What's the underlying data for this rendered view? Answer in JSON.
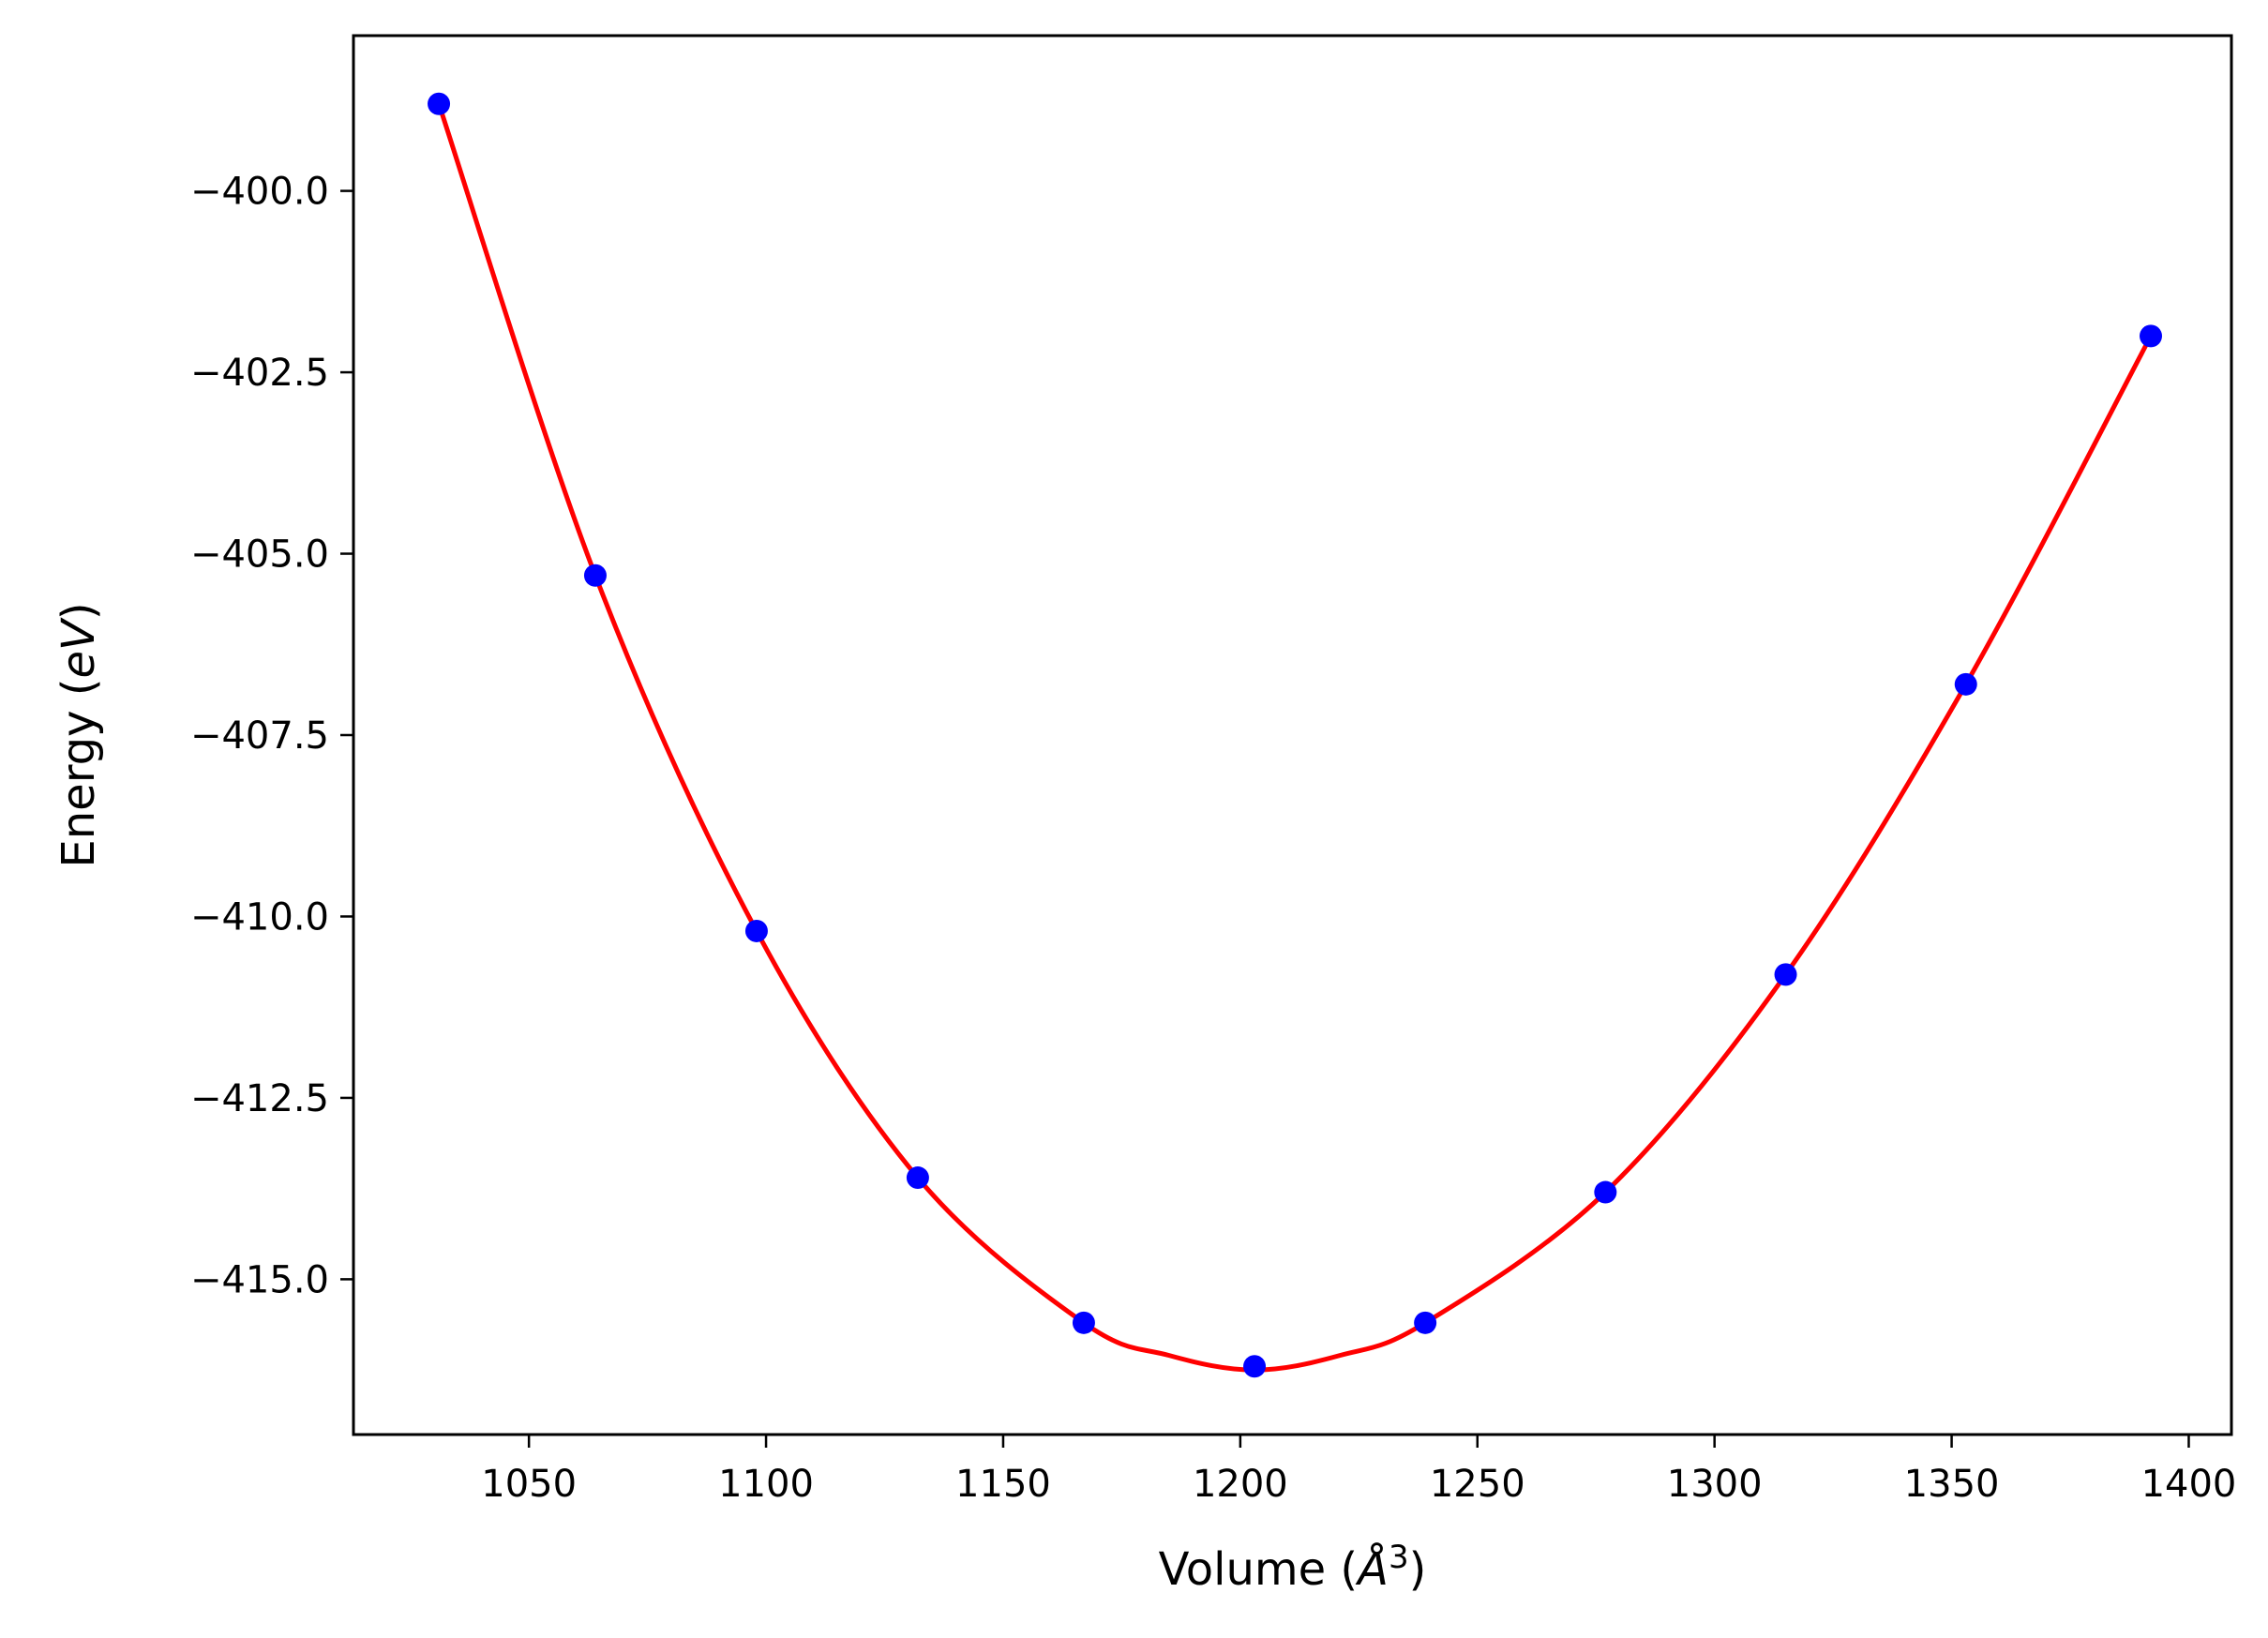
{
  "chart_data": {
    "type": "scatter",
    "title": "",
    "xlabel": {
      "prefix": "Volume (",
      "unit": "Å",
      "superscript": "3",
      "suffix": ")"
    },
    "ylabel": {
      "prefix": "Energy (",
      "unit": "eV",
      "suffix": ")"
    },
    "xlim": [
      1013,
      1409
    ],
    "ylim": [
      -417.14,
      -397.86
    ],
    "xticks": [
      {
        "value": 1050,
        "label": "1050"
      },
      {
        "value": 1100,
        "label": "1100"
      },
      {
        "value": 1150,
        "label": "1150"
      },
      {
        "value": 1200,
        "label": "1200"
      },
      {
        "value": 1250,
        "label": "1250"
      },
      {
        "value": 1300,
        "label": "1300"
      },
      {
        "value": 1350,
        "label": "1350"
      },
      {
        "value": 1400,
        "label": "1400"
      }
    ],
    "yticks": [
      {
        "value": -400.0,
        "label": "−400.0"
      },
      {
        "value": -402.5,
        "label": "−402.5"
      },
      {
        "value": -405.0,
        "label": "−405.0"
      },
      {
        "value": -407.5,
        "label": "−407.5"
      },
      {
        "value": -410.0,
        "label": "−410.0"
      },
      {
        "value": -412.5,
        "label": "−412.5"
      },
      {
        "value": -415.0,
        "label": "−415.0"
      }
    ],
    "grid": false,
    "series": [
      {
        "kind": "points",
        "color": "#0000ff",
        "x": [
          1031,
          1064,
          1098,
          1132,
          1167,
          1203,
          1239,
          1277,
          1315,
          1353,
          1392
        ],
        "y": [
          -398.8,
          -405.3,
          -410.2,
          -413.6,
          -415.6,
          -416.2,
          -415.6,
          -413.8,
          -410.8,
          -406.8,
          -402.0
        ]
      },
      {
        "kind": "fit-curve",
        "color": "#ff0000",
        "x": [
          1031,
          1064,
          1098,
          1132,
          1167,
          1185,
          1203,
          1221,
          1239,
          1277,
          1315,
          1353,
          1392
        ],
        "y": [
          -398.8,
          -405.3,
          -410.2,
          -413.6,
          -415.6,
          -416.05,
          -416.25,
          -416.05,
          -415.6,
          -413.8,
          -410.8,
          -406.8,
          -402.0
        ]
      }
    ]
  }
}
